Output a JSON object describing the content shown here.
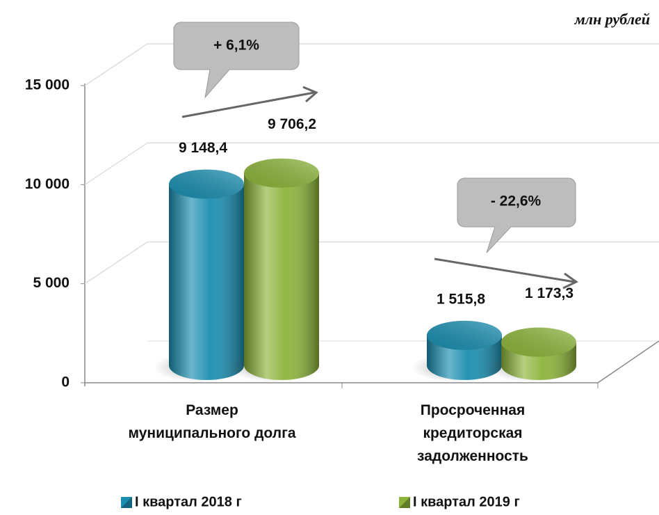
{
  "chart_data": {
    "type": "bar3d",
    "unit_label": "млн рублей",
    "categories": [
      "Размер муниципального долга",
      "Просроченная кредиторская задолженность"
    ],
    "series": [
      {
        "name": "I квартал 2018 г",
        "color": "#1a8eb0",
        "values": [
          9148.4,
          1515.8
        ],
        "value_labels": [
          "9 148,4",
          "1 515,8"
        ]
      },
      {
        "name": "I квартал 2019 г",
        "color": "#8cb43a",
        "values": [
          9706.2,
          1173.3
        ],
        "value_labels": [
          "9 706,2",
          "1 173,3"
        ]
      }
    ],
    "ylim": [
      0,
      15000
    ],
    "yticks": [
      0,
      {
        "value": 5000,
        "label": "5 000"
      },
      {
        "value": 10000,
        "label": "10 000"
      },
      {
        "value": 15000,
        "label": "15 000"
      }
    ],
    "grid": true,
    "annotations": [
      "+ 6,1%",
      "- 22,6%"
    ]
  }
}
